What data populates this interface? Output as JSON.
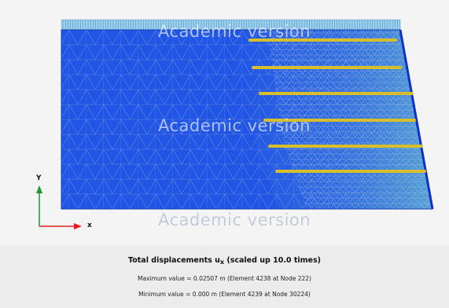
{
  "viewer": {
    "watermark": "Academic version",
    "axes": {
      "y_label": "Y",
      "x_label": "x"
    }
  },
  "info": {
    "title_prefix": "Total displacements u",
    "title_subscript": "x",
    "title_suffix": " (scaled up 10.0 times)",
    "max_line": "Maximum value = 0.02507 m (Element 4238 at Node 222)",
    "min_line": "Minimum value = 0.000 m (Element 4239 at Node 30224)"
  },
  "colors": {
    "mesh_fill": "#2155e6",
    "mesh_line": "#8fa9d8",
    "anchor": "#d6bf2a",
    "load": "#9ad0ee",
    "x_axis": "#e02020",
    "y_axis": "#1a9a30"
  }
}
